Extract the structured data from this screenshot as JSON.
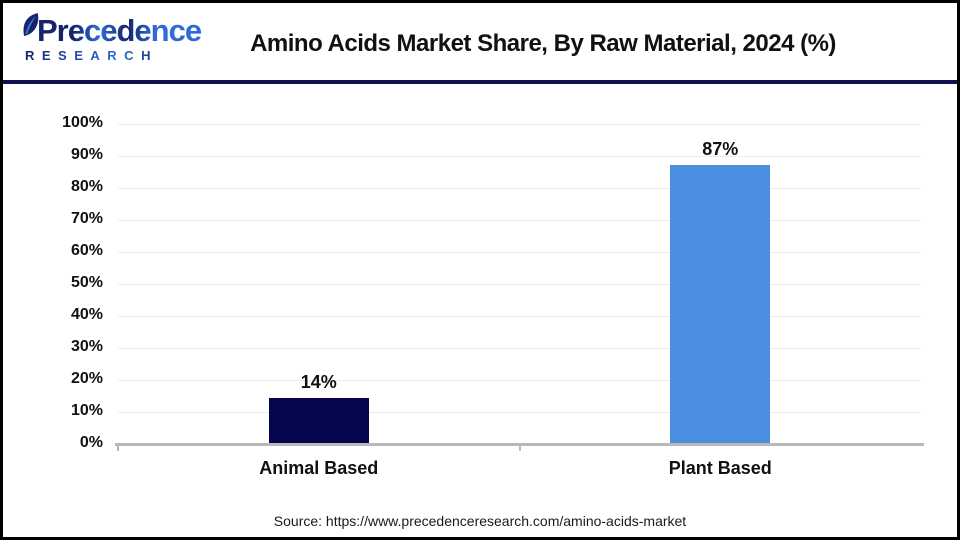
{
  "header": {
    "logo": {
      "line1": "Precedence",
      "line2": "RESEARCH",
      "navy": "#16246e",
      "blue": "#2e6bd9"
    },
    "title": "Amino Acids Market Share, By Raw Material, 2024 (%)"
  },
  "chart_data": {
    "type": "bar",
    "title": "Amino Acids Market Share, By Raw Material, 2024 (%)",
    "categories": [
      "Animal Based",
      "Plant Based"
    ],
    "values": [
      14,
      87
    ],
    "value_labels": [
      "14%",
      "87%"
    ],
    "bar_colors": [
      "#06064f",
      "#4a8fe2"
    ],
    "xlabel": "",
    "ylabel": "",
    "ylim": [
      0,
      100
    ],
    "ytick_step": 10,
    "ytick_labels": [
      "0%",
      "10%",
      "20%",
      "30%",
      "40%",
      "50%",
      "60%",
      "70%",
      "80%",
      "90%",
      "100%"
    ],
    "grid": true,
    "legend": false,
    "gridline_color": "#ececec",
    "baseline_color": "#b9b9b9"
  },
  "footer": {
    "source": "Source: https://www.precedenceresearch.com/amino-acids-market"
  }
}
